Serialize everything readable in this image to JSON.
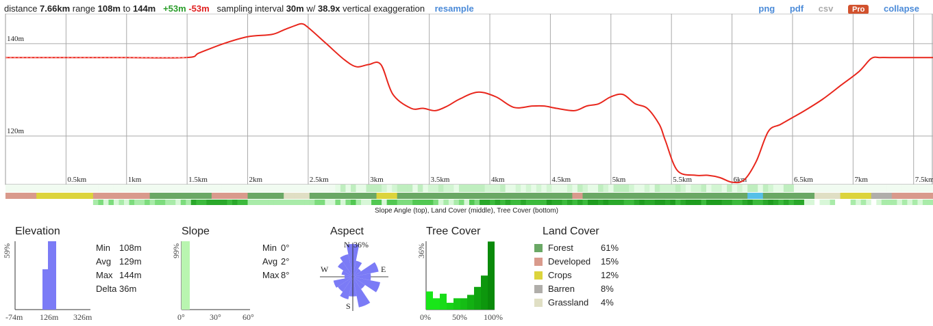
{
  "header": {
    "distance_label": "distance",
    "distance": "7.66km",
    "range_label": "range",
    "range_min": "108m",
    "to_label": "to",
    "range_max": "144m",
    "gain": "+53m",
    "loss": "-53m",
    "sampling_label": "sampling interval",
    "sampling_interval": "30m",
    "w_label": "w/",
    "exaggeration": "38.9x",
    "exaggeration_label": "vertical exaggeration",
    "resample": "resample",
    "png": "png",
    "pdf": "pdf",
    "csv": "csv",
    "pro": "Pro",
    "collapse": "collapse"
  },
  "chart_data": {
    "type": "line",
    "x": [
      0,
      0.5,
      1,
      1.5,
      1.6,
      1.8,
      2.0,
      2.2,
      2.3,
      2.4,
      2.45,
      2.5,
      2.65,
      2.8,
      2.9,
      3.0,
      3.1,
      3.2,
      3.35,
      3.45,
      3.55,
      3.65,
      3.75,
      3.9,
      4.05,
      4.2,
      4.35,
      4.45,
      4.55,
      4.7,
      4.8,
      4.9,
      5.0,
      5.1,
      5.2,
      5.3,
      5.4,
      5.45,
      5.55,
      5.7,
      5.8,
      5.9,
      6.0,
      6.1,
      6.2,
      6.3,
      6.4,
      6.5,
      6.6,
      6.75,
      6.9,
      7.05,
      7.15,
      7.22,
      7.3,
      7.5,
      7.66
    ],
    "y": [
      137,
      137,
      137,
      137,
      138,
      140,
      141.5,
      142,
      143,
      144,
      144.3,
      143.5,
      140,
      136.5,
      135,
      135.5,
      135.5,
      129,
      126,
      126,
      125.5,
      126.5,
      128,
      129.5,
      128.5,
      126.2,
      126.5,
      126.5,
      126,
      125.5,
      126.5,
      127,
      128.5,
      129,
      127,
      126,
      122.5,
      119,
      112.5,
      111.5,
      111.5,
      111,
      110,
      110.5,
      114.5,
      121,
      122.5,
      124,
      125.5,
      128,
      131,
      134,
      136.8,
      137,
      137,
      137,
      137
    ],
    "xticks": [
      "0.5km",
      "1km",
      "1.5km",
      "2km",
      "2.5km",
      "3km",
      "3.5km",
      "4km",
      "4.5km",
      "5km",
      "5.5km",
      "6km",
      "6.5km",
      "7km",
      "7.5km"
    ],
    "yticks": [
      "140m",
      "120m"
    ],
    "xlim": [
      0,
      7.66
    ],
    "ylim": [
      109.5,
      146.5
    ],
    "grid": true,
    "line_color": "#e8261c"
  },
  "strips": {
    "caption": "Slope Angle (top), Land Cover (middle), Tree Cover (bottom)",
    "colors": {
      "forest": "#6aa865",
      "developed": "#d99a8c",
      "crops": "#dcd43c",
      "barren": "#b0aeaa",
      "grassland": "#e0dfc4",
      "water": "#56c0e8"
    }
  },
  "elevation": {
    "title": "Elevation",
    "ylabel": "59%",
    "x_min": "-74m",
    "x_mid": "126m",
    "x_max": "326m",
    "stats": [
      {
        "label": "Min",
        "value": "108m"
      },
      {
        "label": "Avg",
        "value": "129m"
      },
      {
        "label": "Max",
        "value": "144m"
      },
      {
        "label": "Delta",
        "value": "36m"
      }
    ],
    "bars": [
      0.59,
      1.0
    ]
  },
  "slope": {
    "title": "Slope",
    "ylabel": "99%",
    "x_min": "0°",
    "x_mid": "30°",
    "x_max": "60°",
    "stats": [
      {
        "label": "Min",
        "value": "0°"
      },
      {
        "label": "Avg",
        "value": "2°"
      },
      {
        "label": "Max",
        "value": "8°"
      }
    ]
  },
  "aspect": {
    "title": "Aspect",
    "n": "N",
    "e": "E",
    "s": "S",
    "w": "W",
    "max_label": "36%",
    "petals": [
      1.0,
      0.5,
      0.3,
      0.8,
      0.55,
      0.85,
      0.45,
      0.95,
      0.6,
      0.7,
      0.55,
      0.6,
      0.25,
      0.35,
      0.55,
      0.7
    ]
  },
  "treecover": {
    "title": "Tree Cover",
    "ylabel": "36%",
    "x_min": "0%",
    "x_mid": "50%",
    "x_max": "100%",
    "bars": [
      0.16,
      0.1,
      0.14,
      0.06,
      0.1,
      0.1,
      0.13,
      0.2,
      0.3,
      0.6
    ]
  },
  "landcover": {
    "title": "Land Cover",
    "items": [
      {
        "name": "Forest",
        "pct": "61%",
        "color": "#6aa865"
      },
      {
        "name": "Developed",
        "pct": "15%",
        "color": "#d99a8c"
      },
      {
        "name": "Crops",
        "pct": "12%",
        "color": "#dcd43c"
      },
      {
        "name": "Barren",
        "pct": "8%",
        "color": "#b0aeaa"
      },
      {
        "name": "Grassland",
        "pct": "4%",
        "color": "#e0dfc4"
      }
    ]
  }
}
